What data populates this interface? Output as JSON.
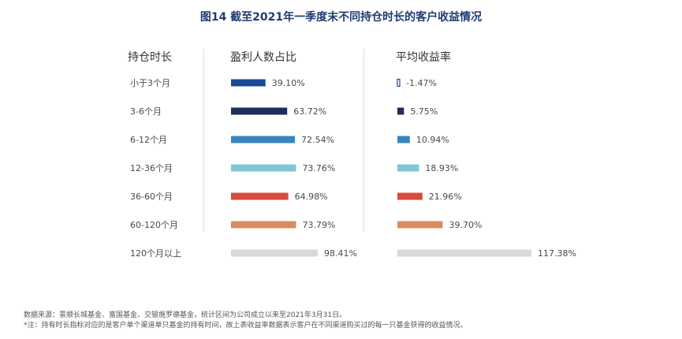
{
  "title": "图14   截至2021年一季度末不同持仓时长的客户收益情况",
  "headers": {
    "col1": "持仓时长",
    "col2": "盈利人数占比",
    "col3": "平均收益率"
  },
  "chart_data": {
    "type": "bar",
    "title": "图14   截至2021年一季度末不同持仓时长的客户收益情况",
    "categories": [
      "小于3个月",
      "3-6个月",
      "6-12个月",
      "12-36个月",
      "36-60个月",
      "60-120个月",
      "120个月以上"
    ],
    "series": [
      {
        "name": "盈利人数占比",
        "values": [
          39.1,
          63.72,
          72.54,
          73.76,
          64.98,
          73.79,
          98.41
        ],
        "labels": [
          "39.10%",
          "63.72%",
          "72.54%",
          "73.76%",
          "64.98%",
          "73.79%",
          "98.41%"
        ]
      },
      {
        "name": "平均收益率",
        "values": [
          -1.47,
          5.75,
          10.94,
          18.93,
          21.96,
          39.7,
          117.38
        ],
        "labels": [
          "-1.47%",
          "5.75%",
          "10.94%",
          "18.93%",
          "21.96%",
          "39.70%",
          "117.38%"
        ]
      }
    ],
    "colors": [
      "#1a4a96",
      "#1f2d5a",
      "#3a85c0",
      "#7fc6d6",
      "#d94a3d",
      "#d98c5f",
      "#d9d9d9"
    ],
    "grid": false,
    "legend": "none"
  },
  "footnotes": [
    "数据来源：景顺长城基金、富国基金、交银施罗德基金，统计区间为公司成立以来至2021年3月31日。",
    "*注：持有时长指标对应的是客户单个渠道单只基金的持有时间，故上表收益率数据表示客户在不同渠道购买过的每一只基金获得的收益情况。"
  ]
}
